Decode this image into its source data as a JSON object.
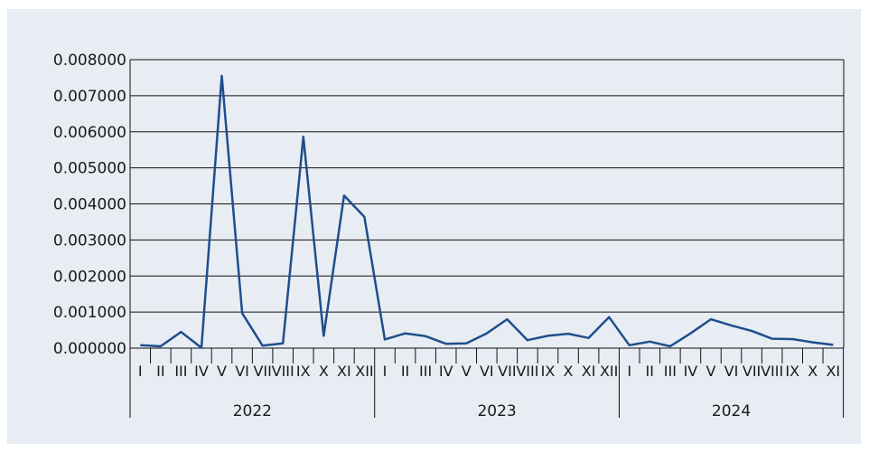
{
  "chart_data": {
    "type": "line",
    "title": "",
    "xlabel": "",
    "ylabel": "",
    "ylim": [
      0,
      0.008
    ],
    "y_ticks": [
      "0.000000",
      "0.001000",
      "0.002000",
      "0.003000",
      "0.004000",
      "0.005000",
      "0.006000",
      "0.007000",
      "0.008000"
    ],
    "grid": "horizontal",
    "colors": {
      "line": "#1f4e8c",
      "grid": "#111111",
      "background": "#e8ecf3"
    },
    "years": [
      {
        "label": "2022",
        "months": [
          "I",
          "II",
          "III",
          "IV",
          "V",
          "VI",
          "VII",
          "VIII",
          "IX",
          "X",
          "XI",
          "XII"
        ]
      },
      {
        "label": "2023",
        "months": [
          "I",
          "II",
          "III",
          "IV",
          "V",
          "VI",
          "VII",
          "VIII",
          "IX",
          "X",
          "XI",
          "XII"
        ]
      },
      {
        "label": "2024",
        "months": [
          "I",
          "II",
          "III",
          "IV",
          "V",
          "VI",
          "VII",
          "VIII",
          "IX",
          "X",
          "XI"
        ]
      }
    ],
    "series": [
      {
        "values": [
          8e-05,
          5e-05,
          0.00045,
          1e-05,
          0.00755,
          0.00097,
          7e-05,
          0.00013,
          0.00586,
          0.00034,
          0.00423,
          0.00364,
          0.00024,
          0.00041,
          0.00033,
          0.00012,
          0.00013,
          0.00041,
          0.0008,
          0.00022,
          0.00034,
          0.0004,
          0.00028,
          0.00086,
          8e-05,
          0.00018,
          5e-05,
          0.00041,
          0.0008,
          0.00063,
          0.00048,
          0.00026,
          0.00025,
          0.00016,
          9e-05
        ]
      }
    ]
  }
}
